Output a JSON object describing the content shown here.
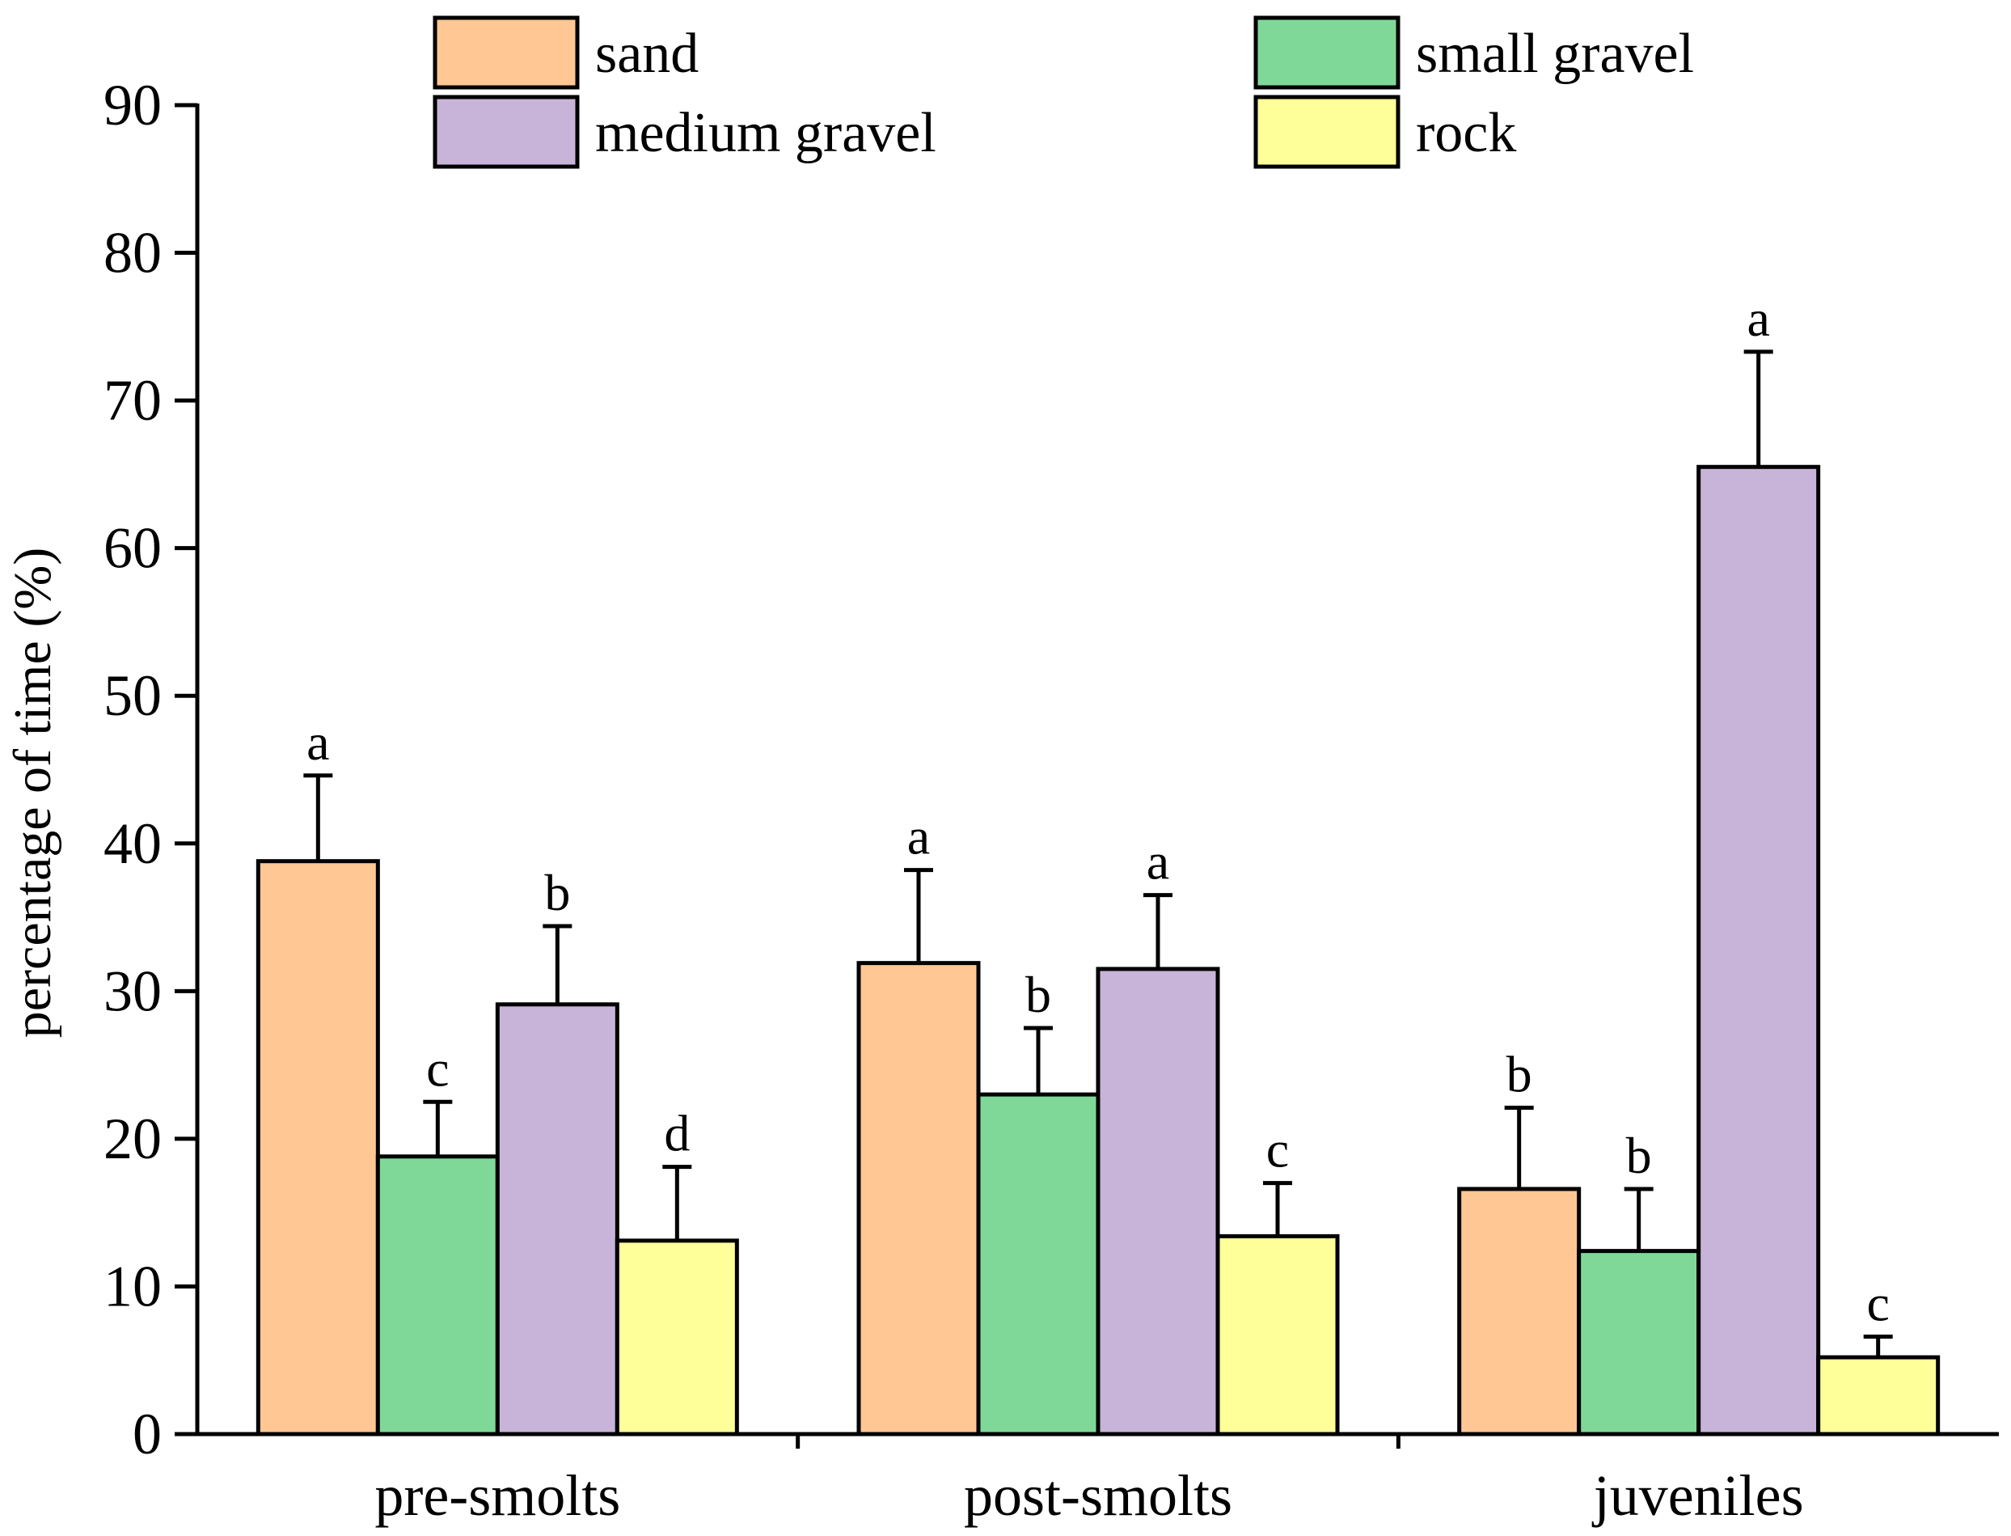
{
  "chart_data": {
    "type": "bar",
    "title": "",
    "xlabel": "",
    "ylabel": "percentage of time (%)",
    "ylim": [
      0,
      90
    ],
    "yticks": [
      0,
      10,
      20,
      30,
      40,
      50,
      60,
      70,
      80,
      90
    ],
    "grid": false,
    "legend_position": "top",
    "categories": [
      "pre-smolts",
      "post-smolts",
      "juveniles"
    ],
    "series": [
      {
        "name": "sand",
        "color": "#FFC794",
        "values": [
          38.8,
          31.9,
          16.6
        ],
        "errors": [
          5.8,
          6.3,
          5.5
        ],
        "letters": [
          "a",
          "a",
          "b"
        ]
      },
      {
        "name": "small gravel",
        "color": "#80D898",
        "values": [
          18.8,
          23.0,
          12.4
        ],
        "errors": [
          3.7,
          4.5,
          4.2
        ],
        "letters": [
          "c",
          "b",
          "b"
        ]
      },
      {
        "name": "medium gravel",
        "color": "#C8B4D8",
        "values": [
          29.1,
          31.5,
          65.5
        ],
        "errors": [
          5.3,
          5.0,
          7.8
        ],
        "letters": [
          "b",
          "a",
          "a"
        ]
      },
      {
        "name": "rock",
        "color": "#FFFF99",
        "values": [
          13.1,
          13.4,
          5.2
        ],
        "errors": [
          5.0,
          3.6,
          1.4
        ],
        "letters": [
          "d",
          "c",
          "c"
        ]
      }
    ]
  }
}
